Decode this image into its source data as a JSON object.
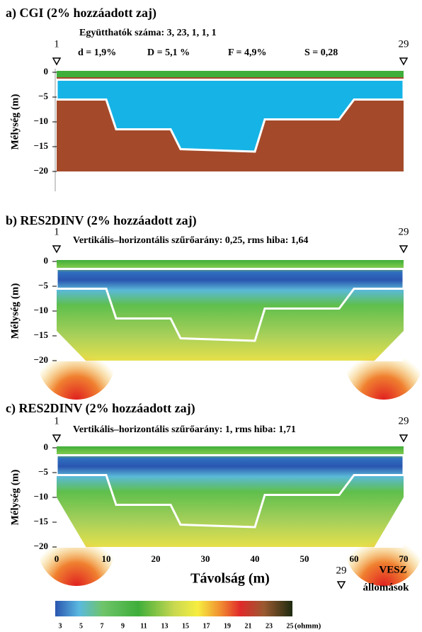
{
  "panels": [
    {
      "title": "a)  CGI (2% hozzáadott zaj)",
      "subtitle": "Együtthatók száma: 3, 23, 1, 1, 1",
      "stats": [
        "d = 1,9%",
        "D = 5,1 %",
        "F = 4,9%",
        "S = 0,28"
      ],
      "station_left": "1",
      "station_right": "29",
      "y_axis_label": "Mélység (m)",
      "yticks": [
        "0",
        "−5",
        "−10",
        "−15",
        "−20"
      ]
    },
    {
      "title": "b)  RES2DINV (2% hozzáadott zaj)",
      "subtitle": "Vertikális–horizontális szűrőarány: 0,25,  rms hiba: 1,64",
      "station_left": "1",
      "station_right": "29",
      "y_axis_label": "Mélység (m)",
      "yticks": [
        "0",
        "−5",
        "−10",
        "−15",
        "−20"
      ]
    },
    {
      "title": "c)  RES2DINV (2% hozzáadott zaj)",
      "subtitle": "Vertikális–horizontális szűrőarány: 1,   rms hiba: 1,71",
      "station_left": "1",
      "station_right": "29",
      "y_axis_label": "Mélység (m)",
      "yticks": [
        "0",
        "−5",
        "−10",
        "−15",
        "−20"
      ]
    }
  ],
  "x_axis": {
    "ticks": [
      "0",
      "10",
      "20",
      "30",
      "40",
      "50",
      "60",
      "70"
    ],
    "label": "Távolság (m)"
  },
  "legend": {
    "station_number": "29",
    "station_label_1": "VESZ",
    "station_label_2": "állomások",
    "colorbar_ticks": [
      "3",
      "5",
      "7",
      "9",
      "11",
      "13",
      "15",
      "17",
      "19",
      "21",
      "23",
      "25"
    ],
    "unit": "(ohmm)"
  }
}
